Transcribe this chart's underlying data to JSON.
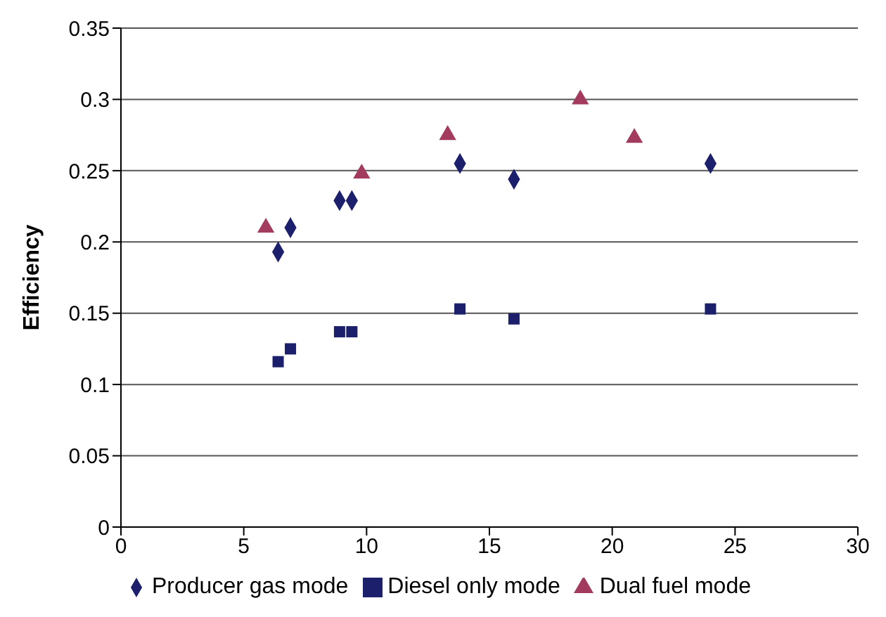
{
  "chart_data": {
    "type": "scatter",
    "ylabel": "Efficiency",
    "xlim": [
      0,
      30
    ],
    "xticks": [
      0,
      5,
      10,
      15,
      20,
      25,
      30
    ],
    "ylim": [
      0,
      0.35
    ],
    "yticks": [
      0,
      0.05,
      0.1,
      0.15,
      0.2,
      0.25,
      0.3,
      0.35
    ],
    "grid": "y",
    "legend": "bottom",
    "series": [
      {
        "name": "Producer gas mode",
        "color": "#1c1f6b",
        "marker": "diamond",
        "x": [
          6.4,
          6.9,
          8.9,
          9.4,
          13.8,
          16,
          24
        ],
        "values": [
          0.193,
          0.21,
          0.229,
          0.229,
          0.255,
          0.244,
          0.255
        ]
      },
      {
        "name": "Diesel only mode",
        "color": "#1c1f6b",
        "marker": "square",
        "x": [
          6.4,
          6.9,
          8.9,
          9.4,
          13.8,
          16,
          24
        ],
        "values": [
          0.116,
          0.125,
          0.137,
          0.137,
          0.153,
          0.146,
          0.153
        ]
      },
      {
        "name": "Dual fuel mode",
        "color": "#a33b5e",
        "marker": "triangle",
        "x": [
          5.9,
          9.8,
          13.3,
          18.7,
          20.9
        ],
        "values": [
          0.21,
          0.248,
          0.275,
          0.3,
          0.273
        ]
      }
    ]
  }
}
